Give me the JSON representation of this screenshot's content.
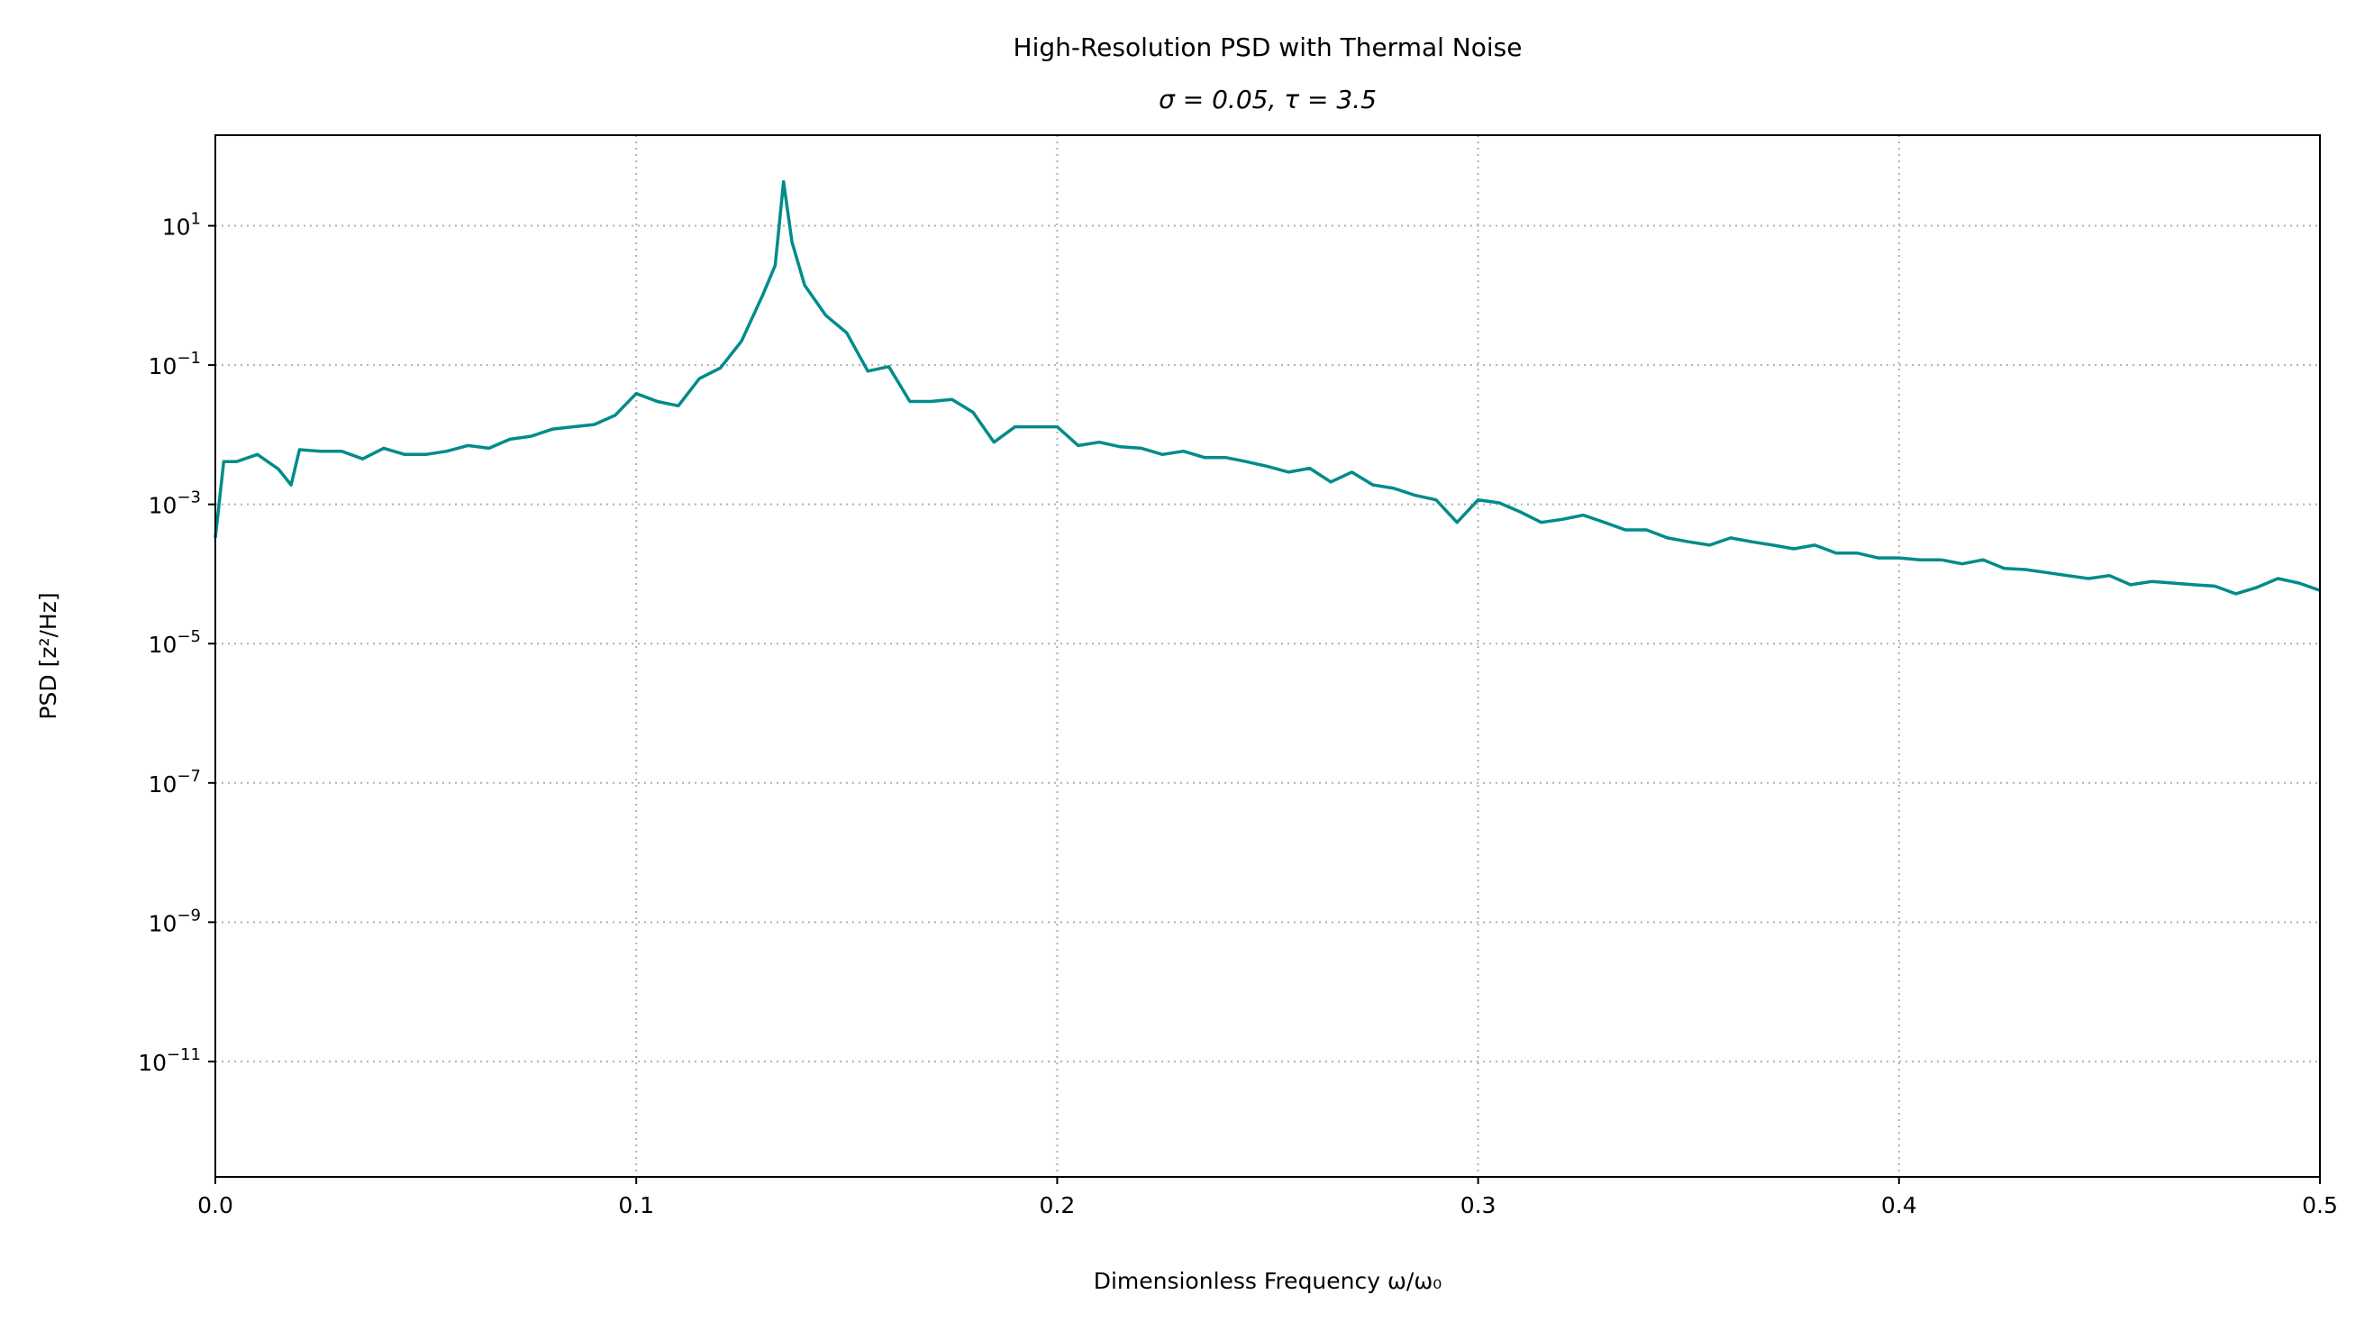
{
  "chart_data": {
    "type": "line",
    "title": "High-Resolution PSD with Thermal Noise",
    "subtitle": "σ = 0.05, τ = 3.5",
    "xlabel": "Dimensionless Frequency ω/ω₀",
    "ylabel": "PSD [z²/Hz]",
    "xlim": [
      0,
      0.5
    ],
    "ylim": [
      2.2e-13,
      200
    ],
    "yscale": "log",
    "grid": true,
    "x_ticks": [
      0.0,
      0.1,
      0.2,
      0.3,
      0.4,
      0.5
    ],
    "x_tick_labels": [
      "0.0",
      "0.1",
      "0.2",
      "0.3",
      "0.4",
      "0.5"
    ],
    "y_ticks": [
      {
        "exp": 1,
        "label_base": "10",
        "label_exp": "1"
      },
      {
        "exp": -1,
        "label_base": "10",
        "label_exp": "−1"
      },
      {
        "exp": -3,
        "label_base": "10",
        "label_exp": "−3"
      },
      {
        "exp": -5,
        "label_base": "10",
        "label_exp": "−5"
      },
      {
        "exp": -7,
        "label_base": "10",
        "label_exp": "−7"
      },
      {
        "exp": -9,
        "label_base": "10",
        "label_exp": "−9"
      },
      {
        "exp": -11,
        "label_base": "10",
        "label_exp": "−11"
      }
    ],
    "line_color": "#008b8b",
    "series": [
      {
        "x": [
          0.0,
          0.002,
          0.005,
          0.01,
          0.015,
          0.018,
          0.02,
          0.025,
          0.03,
          0.035,
          0.04,
          0.045,
          0.05,
          0.055,
          0.06,
          0.065,
          0.07,
          0.075,
          0.08,
          0.085,
          0.09,
          0.095,
          0.1,
          0.105,
          0.11,
          0.115,
          0.12,
          0.125,
          0.13,
          0.133,
          0.135,
          0.137,
          0.14,
          0.145,
          0.15,
          0.155,
          0.16,
          0.165,
          0.17,
          0.175,
          0.18,
          0.185,
          0.19,
          0.195,
          0.2,
          0.205,
          0.21,
          0.215,
          0.22,
          0.225,
          0.23,
          0.235,
          0.24,
          0.245,
          0.25,
          0.255,
          0.26,
          0.265,
          0.27,
          0.275,
          0.28,
          0.285,
          0.29,
          0.295,
          0.3,
          0.305,
          0.31,
          0.315,
          0.32,
          0.325,
          0.33,
          0.335,
          0.34,
          0.345,
          0.35,
          0.355,
          0.36,
          0.365,
          0.37,
          0.375,
          0.38,
          0.385,
          0.39,
          0.395,
          0.4,
          0.405,
          0.41,
          0.415,
          0.42,
          0.425,
          0.43,
          0.435,
          0.44,
          0.445,
          0.45,
          0.455,
          0.46,
          0.465,
          0.47,
          0.475,
          0.48,
          0.485,
          0.49,
          0.495,
          0.5
        ],
        "y": [
          0.00033,
          0.0041,
          0.0041,
          0.0052,
          0.0032,
          0.0019,
          0.0061,
          0.0058,
          0.0058,
          0.0045,
          0.0064,
          0.0052,
          0.0052,
          0.0058,
          0.007,
          0.0064,
          0.0086,
          0.0095,
          0.012,
          0.013,
          0.014,
          0.019,
          0.039,
          0.03,
          0.026,
          0.064,
          0.091,
          0.22,
          1.0,
          2.7,
          43,
          5.8,
          1.4,
          0.52,
          0.29,
          0.082,
          0.095,
          0.03,
          0.03,
          0.032,
          0.021,
          0.0078,
          0.013,
          0.013,
          0.013,
          0.007,
          0.0078,
          0.0067,
          0.0064,
          0.0052,
          0.0058,
          0.0047,
          0.0047,
          0.0041,
          0.0035,
          0.0029,
          0.0033,
          0.0021,
          0.0029,
          0.0019,
          0.0017,
          0.00135,
          0.00116,
          0.00055,
          0.00116,
          0.00105,
          0.00078,
          0.00055,
          0.00061,
          0.0007,
          0.00055,
          0.00043,
          0.00043,
          0.00033,
          0.00029,
          0.00026,
          0.00033,
          0.00029,
          0.00026,
          0.00023,
          0.00026,
          0.0002,
          0.0002,
          0.00017,
          0.00017,
          0.00016,
          0.00016,
          0.00014,
          0.00016,
          0.00012,
          0.000116,
          0.000105,
          9.5e-05,
          8.6e-05,
          9.5e-05,
          7e-05,
          7.8e-05,
          7.4e-05,
          7e-05,
          6.7e-05,
          5.2e-05,
          6.4e-05,
          8.6e-05,
          7.4e-05,
          5.8e-05
        ]
      }
    ]
  }
}
